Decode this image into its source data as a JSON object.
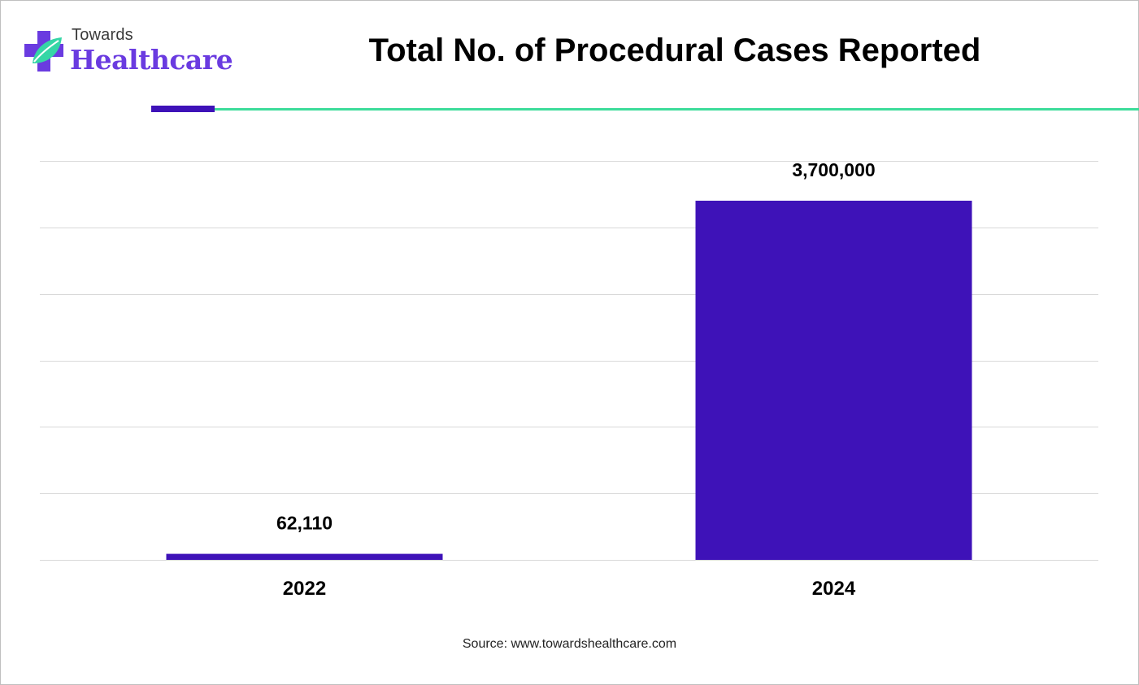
{
  "logo": {
    "line1": "Towards",
    "line2": "Healthcare"
  },
  "title": "Total No. of Procedural Cases Reported",
  "source": "Source: www.towardshealthcare.com",
  "colors": {
    "bar": "#3e12b8",
    "accent_rule": "#3e12b8",
    "teal_rule": "#3ddc9a",
    "gridline": "#d9d9d9",
    "logo_purple": "#6a3be0",
    "logo_teal": "#36d6a6"
  },
  "chart_data": {
    "type": "bar",
    "title": "Total No. of Procedural Cases Reported",
    "categories": [
      "2022",
      "2024"
    ],
    "values": [
      62110,
      3700000
    ],
    "value_labels": [
      "62,110",
      "3,700,000"
    ],
    "ylim": [
      0,
      3700000
    ],
    "grid": true,
    "legend": false,
    "xlabel": "",
    "ylabel": ""
  }
}
